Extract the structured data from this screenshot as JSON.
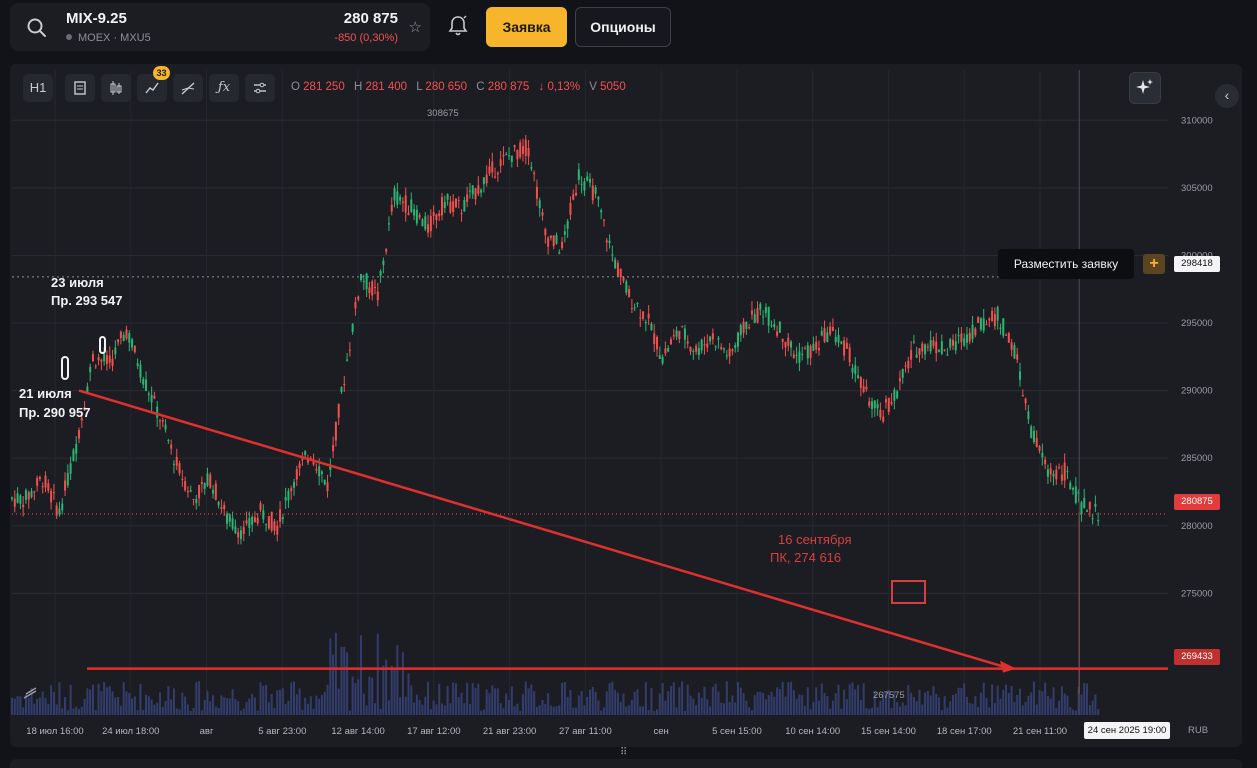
{
  "header": {
    "symbol": "MIX-9.25",
    "exchange": "MOEX · MXU5",
    "price": "280 875",
    "change": "-850 (0,30%)",
    "order_button": "Заявка",
    "options_button": "Опционы"
  },
  "toolbar": {
    "timeframe": "H1",
    "indicators_badge": "33",
    "ohlc": {
      "o_label": "O",
      "o": "281 250",
      "h_label": "H",
      "h": "281 400",
      "l_label": "L",
      "l": "280 650",
      "c_label": "C",
      "c": "280 875",
      "change": "↓ 0,13%",
      "v_label": "V",
      "v": "5050"
    }
  },
  "tooltip": {
    "place_order": "Разместить заявку",
    "plus": "+",
    "price": "298418"
  },
  "price_tags": {
    "last": "280875",
    "level": "269433"
  },
  "time_tag": "24 сен 2025 19:00",
  "currency": "RUB",
  "colors": {
    "up": "#2bb673",
    "down": "#f0514f",
    "accent": "#f7b52c",
    "annotation": "#e0302e"
  },
  "chart_data": {
    "type": "candlestick",
    "ylim": [
      266000,
      311500
    ],
    "yticks": [
      "310000",
      "305000",
      "300000",
      "295000",
      "290000",
      "285000",
      "280000",
      "275000"
    ],
    "x_labels": [
      "18 июл 16:00",
      "24 июл 18:00",
      "авг",
      "5 авг 23:00",
      "12 авг 14:00",
      "17 авг 12:00",
      "21 авг 23:00",
      "27 авг 11:00",
      "сен",
      "5 сен 15:00",
      "10 сен 14:00",
      "15 сен 14:00",
      "18 сен 17:00",
      "21 сен 11:00"
    ],
    "x_range": [
      "2025-07-18",
      "2025-09-25"
    ],
    "series": [
      {
        "points": [
          [
            "2025-07-18",
            282000
          ],
          [
            "2025-07-19",
            283500
          ],
          [
            "2025-07-20",
            281000
          ],
          [
            "2025-07-21",
            286000
          ],
          [
            "2025-07-22",
            292500
          ],
          [
            "2025-07-23",
            292000
          ],
          [
            "2025-07-24",
            294500
          ],
          [
            "2025-07-25",
            291000
          ],
          [
            "2025-07-26",
            288000
          ],
          [
            "2025-07-27",
            284500
          ],
          [
            "2025-07-28",
            282000
          ],
          [
            "2025-07-29",
            283500
          ],
          [
            "2025-07-30",
            280500
          ],
          [
            "2025-07-31",
            279500
          ],
          [
            "2025-08-01",
            281000
          ],
          [
            "2025-08-02",
            280000
          ],
          [
            "2025-08-03",
            283500
          ],
          [
            "2025-08-04",
            285500
          ],
          [
            "2025-08-05",
            283000
          ],
          [
            "2025-08-06",
            291000
          ],
          [
            "2025-08-07",
            298500
          ],
          [
            "2025-08-08",
            297000
          ],
          [
            "2025-08-09",
            304500
          ],
          [
            "2025-08-10",
            303500
          ],
          [
            "2025-08-11",
            302000
          ],
          [
            "2025-08-12",
            304000
          ],
          [
            "2025-08-13",
            303500
          ],
          [
            "2025-08-14",
            305000
          ],
          [
            "2025-08-15",
            306500
          ],
          [
            "2025-08-16",
            307500
          ],
          [
            "2025-08-17",
            308000
          ],
          [
            "2025-08-18",
            301500
          ],
          [
            "2025-08-19",
            300500
          ],
          [
            "2025-08-20",
            306000
          ],
          [
            "2025-08-21",
            304500
          ],
          [
            "2025-08-22",
            300000
          ],
          [
            "2025-08-23",
            297000
          ],
          [
            "2025-08-24",
            295500
          ],
          [
            "2025-08-25",
            292500
          ],
          [
            "2025-08-26",
            294500
          ],
          [
            "2025-08-27",
            293000
          ],
          [
            "2025-08-28",
            294000
          ],
          [
            "2025-08-29",
            292500
          ],
          [
            "2025-08-30",
            295000
          ],
          [
            "2025-08-31",
            296000
          ],
          [
            "2025-09-01",
            294500
          ],
          [
            "2025-09-02",
            292500
          ],
          [
            "2025-09-03",
            293000
          ],
          [
            "2025-09-04",
            294500
          ],
          [
            "2025-09-05",
            293000
          ],
          [
            "2025-09-06",
            290000
          ],
          [
            "2025-09-07",
            288000
          ],
          [
            "2025-09-08",
            290000
          ],
          [
            "2025-09-09",
            293000
          ],
          [
            "2025-09-10",
            293500
          ],
          [
            "2025-09-11",
            293000
          ],
          [
            "2025-09-12",
            294000
          ],
          [
            "2025-09-13",
            295000
          ],
          [
            "2025-09-14",
            295500
          ],
          [
            "2025-09-15",
            293000
          ],
          [
            "2025-09-16",
            287000
          ],
          [
            "2025-09-17",
            284000
          ],
          [
            "2025-09-18",
            284000
          ],
          [
            "2025-09-19",
            281500
          ],
          [
            "2025-09-20",
            280875
          ]
        ]
      }
    ],
    "extremes": {
      "high_label": "308675",
      "low_label": "267575"
    },
    "annotations": {
      "a1_date": "23 июля",
      "a1_value": "Пр. 293 547",
      "a2_date": "21 июля",
      "a2_value": "Пр. 290 957",
      "a3_date": "16 сентября",
      "a3_value": "ПК, 274 616"
    }
  }
}
